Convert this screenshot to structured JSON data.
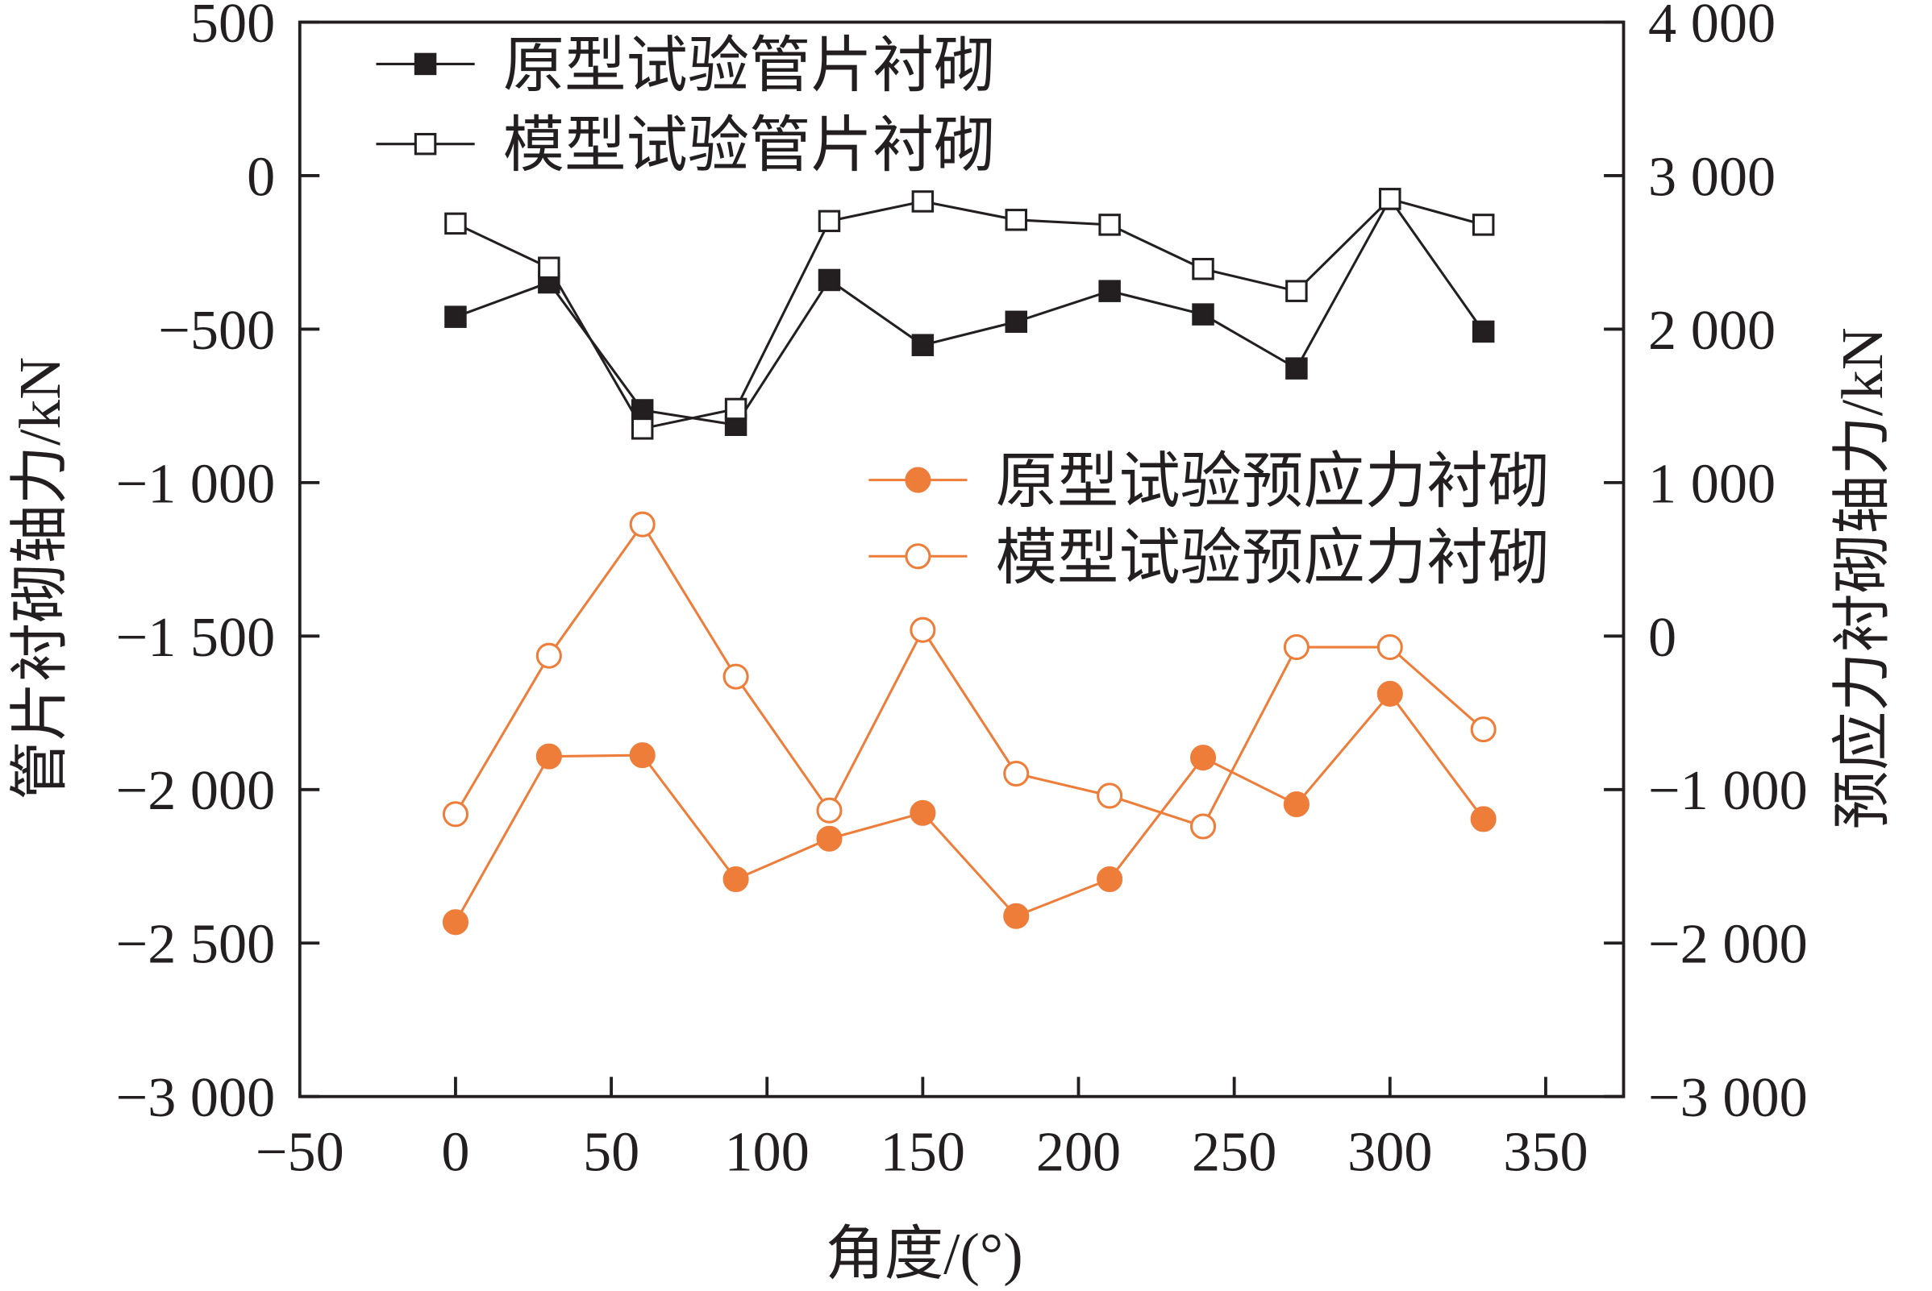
{
  "chart_data": {
    "type": "line",
    "title": "",
    "xlabel": "角度/(°)",
    "ylabel_left": "管片衬砌轴力/kN",
    "ylabel_right": "预应力衬砌轴力/kN",
    "xlim": [
      -50,
      375
    ],
    "ylim_left": [
      -3000,
      500
    ],
    "ylim_right": [
      -3000,
      4000
    ],
    "x_ticks": [
      -50,
      0,
      50,
      100,
      150,
      200,
      250,
      300,
      350
    ],
    "x_tick_labels": [
      "−50",
      "0",
      "50",
      "100",
      "150",
      "200",
      "250",
      "300",
      "350"
    ],
    "y_left_ticks": [
      500,
      0,
      -500,
      -1000,
      -1500,
      -2000,
      -2500,
      -3000
    ],
    "y_left_tick_labels": [
      "500",
      "0",
      "−500",
      "−1 000",
      "−1 500",
      "−2 000",
      "−2 500",
      "−3 000"
    ],
    "y_right_ticks": [
      4000,
      3000,
      2000,
      1000,
      0,
      -1000,
      -2000,
      -3000
    ],
    "y_right_tick_labels": [
      "4 000",
      "3 000",
      "2 000",
      "1 000",
      "0",
      "−1 000",
      "−2 000",
      "−3 000"
    ],
    "grid": false,
    "x": [
      0,
      30,
      60,
      90,
      120,
      150,
      180,
      210,
      240,
      270,
      300,
      330
    ],
    "series": [
      {
        "name": "原型试验管片衬砌",
        "axis": "left",
        "marker": "square-filled",
        "color": "#231f20",
        "values": [
          -460,
          -348,
          -764,
          -812,
          -340,
          -552,
          -476,
          -376,
          -452,
          -628,
          -76,
          -508
        ]
      },
      {
        "name": "模型试验管片衬砌",
        "axis": "left",
        "marker": "square-open",
        "color": "#231f20",
        "values": [
          -156,
          -300,
          -824,
          -760,
          -148,
          -84,
          -144,
          -160,
          -304,
          -376,
          -76,
          -160
        ]
      },
      {
        "name": "原型试验预应力衬砌",
        "axis": "right",
        "marker": "circle-filled",
        "color": "#ee7d3a",
        "values": [
          -1864,
          -784,
          -776,
          -1584,
          -1320,
          -1152,
          -1824,
          -1584,
          -792,
          -1096,
          -376,
          -1192
        ]
      },
      {
        "name": "模型试验预应力衬砌",
        "axis": "right",
        "marker": "circle-open",
        "color": "#ee7d3a",
        "values": [
          -1160,
          -128,
          728,
          -264,
          -1136,
          40,
          -896,
          -1040,
          -1240,
          -72,
          -72,
          -608
        ]
      }
    ],
    "legend_placement": [
      "top-left",
      "center-right"
    ]
  }
}
